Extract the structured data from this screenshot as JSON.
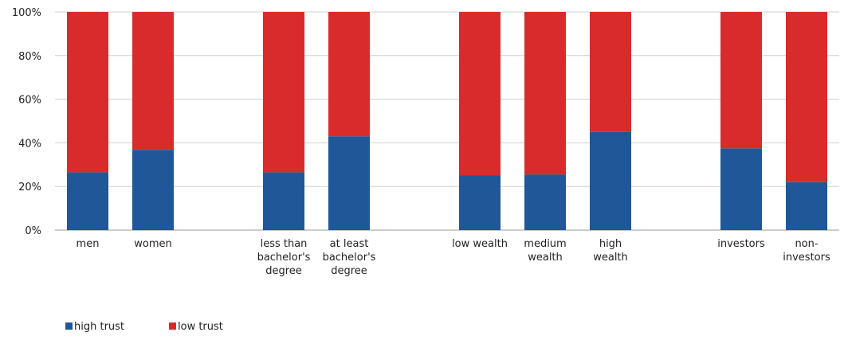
{
  "chart_data": {
    "type": "stacked_bar",
    "categories": [
      "men",
      "women",
      null,
      "less than\nbachelor's\ndegree",
      "at least\nbachelor's\ndegree",
      null,
      "low wealth",
      "medium\nwealth",
      "high\nwealth",
      null,
      "investors",
      "non-\ninvestors"
    ],
    "series": [
      {
        "name": "high trust",
        "color": "#1f5799",
        "values": [
          26.5,
          36.8,
          null,
          26.5,
          43,
          null,
          25,
          25.5,
          45,
          null,
          37.5,
          22
        ]
      },
      {
        "name": "low trust",
        "color": "#d92b2b",
        "values": [
          73.5,
          63.2,
          null,
          73.5,
          57,
          null,
          75,
          74.5,
          55,
          null,
          62.5,
          78
        ]
      }
    ],
    "ylim": [
      0,
      100
    ],
    "yticks": [
      {
        "value": 0,
        "label": "0%"
      },
      {
        "value": 20,
        "label": "20%"
      },
      {
        "value": 40,
        "label": "40%"
      },
      {
        "value": 60,
        "label": "60%"
      },
      {
        "value": 80,
        "label": "80%"
      },
      {
        "value": 100,
        "label": "100%"
      }
    ],
    "grid": true,
    "legend": "bottom-left"
  }
}
